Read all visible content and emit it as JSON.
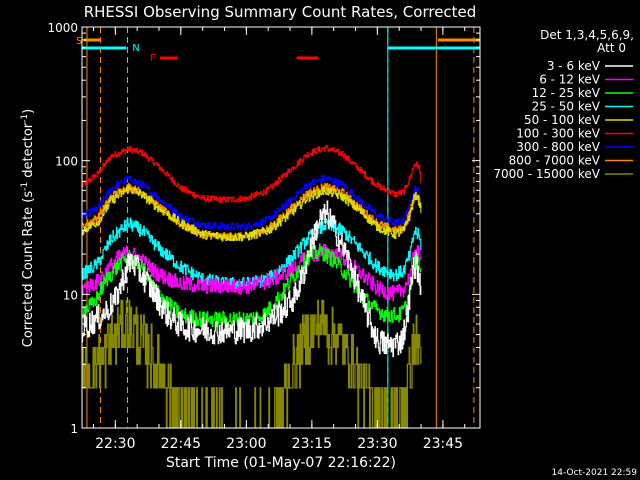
{
  "chart_data": {
    "type": "line",
    "title": "RHESSI Observing Summary Count Rates, Corrected",
    "xlabel": "Start Time (01-May-07 22:16:22)",
    "ylabel": "Corrected Count Rate (s⁻¹ detector⁻¹)",
    "ylabel_parts": {
      "main": "Corrected Count Rate (s",
      "exp1": "-1",
      "mid": " detector",
      "exp2": "-1",
      "end": ")"
    },
    "ylim": [
      1,
      1000
    ],
    "yscale": "log",
    "y_ticks": [
      "1",
      "10",
      "100",
      "1000"
    ],
    "x_range_minutes": [
      22.367,
      113.5
    ],
    "x_ticks": [
      {
        "label": "22:30",
        "min": 30
      },
      {
        "label": "22:45",
        "min": 45
      },
      {
        "label": "23:00",
        "min": 60
      },
      {
        "label": "23:15",
        "min": 75
      },
      {
        "label": "23:30",
        "min": 90
      },
      {
        "label": "23:45",
        "min": 105
      }
    ],
    "legend_header": [
      "Det 1,3,4,5,6,9,",
      "Att 0"
    ],
    "legend_position": "right",
    "series": [
      {
        "name": "3 - 6 keV",
        "color": "#ffffff",
        "noise": 0.1,
        "k": [
          [
            22.37,
            5.5
          ],
          [
            24,
            6
          ],
          [
            27,
            7
          ],
          [
            30,
            9
          ],
          [
            32,
            14
          ],
          [
            33.5,
            18
          ],
          [
            36,
            14
          ],
          [
            39,
            10
          ],
          [
            42,
            7
          ],
          [
            45,
            5.8
          ],
          [
            48,
            5.5
          ],
          [
            54,
            5.3
          ],
          [
            60,
            5.4
          ],
          [
            64,
            6
          ],
          [
            68,
            7.5
          ],
          [
            71,
            9.5
          ],
          [
            73,
            14
          ],
          [
            74.5,
            22
          ],
          [
            76.5,
            35
          ],
          [
            78.5,
            40
          ],
          [
            81,
            27
          ],
          [
            84,
            16
          ],
          [
            86,
            10
          ],
          [
            88,
            6.5
          ],
          [
            90,
            4.5
          ],
          [
            92,
            4.2
          ],
          [
            93.5,
            4.2
          ],
          [
            95.5,
            4.5
          ],
          [
            96.5,
            6
          ],
          [
            97.5,
            10
          ],
          [
            98.2,
            16
          ],
          [
            98.9,
            17
          ],
          [
            99.5,
            13
          ],
          [
            100,
            12
          ]
        ]
      },
      {
        "name": "6 - 12 keV",
        "color": "#ff00ff",
        "noise": 0.06,
        "k": [
          [
            22.37,
            11
          ],
          [
            26,
            12.5
          ],
          [
            30,
            18
          ],
          [
            33,
            21
          ],
          [
            36,
            18
          ],
          [
            40,
            14
          ],
          [
            45,
            12
          ],
          [
            50,
            11.5
          ],
          [
            55,
            11.5
          ],
          [
            60,
            11.5
          ],
          [
            65,
            12.5
          ],
          [
            70,
            15
          ],
          [
            74,
            19
          ],
          [
            78,
            21
          ],
          [
            82,
            19
          ],
          [
            86,
            14.5
          ],
          [
            90,
            11
          ],
          [
            94,
            10
          ],
          [
            96,
            11
          ],
          [
            97.5,
            14
          ],
          [
            98.5,
            22
          ],
          [
            99.5,
            20
          ],
          [
            100,
            17
          ]
        ]
      },
      {
        "name": "12 - 25 keV",
        "color": "#00ff00",
        "noise": 0.06,
        "k": [
          [
            22.37,
            7.5
          ],
          [
            25,
            8.5
          ],
          [
            28,
            13
          ],
          [
            31,
            17
          ],
          [
            33,
            19
          ],
          [
            36,
            16
          ],
          [
            39,
            11
          ],
          [
            42,
            8.5
          ],
          [
            45,
            7
          ],
          [
            50,
            6.5
          ],
          [
            55,
            6.5
          ],
          [
            60,
            6.5
          ],
          [
            64,
            7
          ],
          [
            68,
            10
          ],
          [
            71,
            14
          ],
          [
            74,
            19
          ],
          [
            77,
            21
          ],
          [
            80,
            18
          ],
          [
            83,
            14
          ],
          [
            86,
            10
          ],
          [
            89,
            8
          ],
          [
            92,
            7
          ],
          [
            95,
            7
          ],
          [
            96.5,
            8
          ],
          [
            97.5,
            11
          ],
          [
            98.5,
            18
          ],
          [
            99.5,
            17
          ],
          [
            100,
            14
          ]
        ]
      },
      {
        "name": "25 - 50 keV",
        "color": "#00ffff",
        "noise": 0.05,
        "k": [
          [
            22.37,
            14
          ],
          [
            26,
            17
          ],
          [
            29,
            26
          ],
          [
            33,
            34
          ],
          [
            36,
            30
          ],
          [
            40,
            22
          ],
          [
            45,
            16
          ],
          [
            50,
            13
          ],
          [
            55,
            12
          ],
          [
            60,
            12
          ],
          [
            65,
            13
          ],
          [
            70,
            18
          ],
          [
            74,
            26
          ],
          [
            78,
            33
          ],
          [
            82,
            30
          ],
          [
            86,
            22
          ],
          [
            90,
            16
          ],
          [
            94,
            14
          ],
          [
            96,
            15
          ],
          [
            97.5,
            20
          ],
          [
            98.5,
            30
          ],
          [
            99.5,
            27
          ],
          [
            100,
            23
          ]
        ]
      },
      {
        "name": "50 - 100 keV",
        "color": "#dddd00",
        "noise": 0.035,
        "k": [
          [
            22.37,
            30
          ],
          [
            26,
            35
          ],
          [
            29,
            50
          ],
          [
            33,
            62
          ],
          [
            36,
            56
          ],
          [
            40,
            44
          ],
          [
            45,
            34
          ],
          [
            50,
            28
          ],
          [
            55,
            27
          ],
          [
            60,
            27
          ],
          [
            65,
            30
          ],
          [
            70,
            40
          ],
          [
            74,
            53
          ],
          [
            78,
            60
          ],
          [
            82,
            54
          ],
          [
            86,
            42
          ],
          [
            90,
            32
          ],
          [
            94,
            28
          ],
          [
            96,
            30
          ],
          [
            97.5,
            40
          ],
          [
            98.5,
            55
          ],
          [
            99.5,
            50
          ],
          [
            100,
            43
          ]
        ]
      },
      {
        "name": "100 - 300 keV",
        "color": "#ff0000",
        "noise": 0.025,
        "k": [
          [
            22.37,
            65
          ],
          [
            26,
            80
          ],
          [
            29,
            108
          ],
          [
            33,
            122
          ],
          [
            36,
            115
          ],
          [
            40,
            90
          ],
          [
            45,
            62
          ],
          [
            50,
            52
          ],
          [
            55,
            51
          ],
          [
            60,
            52
          ],
          [
            65,
            60
          ],
          [
            70,
            85
          ],
          [
            74,
            112
          ],
          [
            78,
            125
          ],
          [
            82,
            112
          ],
          [
            86,
            85
          ],
          [
            90,
            65
          ],
          [
            94,
            56
          ],
          [
            96,
            58
          ],
          [
            97.5,
            75
          ],
          [
            98.5,
            95
          ],
          [
            99.5,
            90
          ],
          [
            100,
            70
          ]
        ]
      },
      {
        "name": "300 - 800 keV",
        "color": "#0000ff",
        "noise": 0.03,
        "k": [
          [
            22.37,
            38
          ],
          [
            26,
            44
          ],
          [
            29,
            62
          ],
          [
            33,
            73
          ],
          [
            36,
            66
          ],
          [
            40,
            52
          ],
          [
            45,
            38
          ],
          [
            50,
            33
          ],
          [
            55,
            32
          ],
          [
            60,
            32
          ],
          [
            65,
            36
          ],
          [
            70,
            50
          ],
          [
            74,
            66
          ],
          [
            78,
            74
          ],
          [
            82,
            66
          ],
          [
            86,
            50
          ],
          [
            90,
            39
          ],
          [
            94,
            34
          ],
          [
            96,
            36
          ],
          [
            97.5,
            48
          ],
          [
            98.5,
            63
          ],
          [
            99.5,
            58
          ],
          [
            100,
            48
          ]
        ]
      },
      {
        "name": "800 - 7000 keV",
        "color": "#ff8800",
        "noise": 0.03,
        "k": [
          [
            22.37,
            32
          ],
          [
            26,
            38
          ],
          [
            29,
            54
          ],
          [
            33,
            64
          ],
          [
            36,
            58
          ],
          [
            40,
            45
          ],
          [
            45,
            33
          ],
          [
            50,
            28
          ],
          [
            55,
            27
          ],
          [
            60,
            27
          ],
          [
            65,
            31
          ],
          [
            70,
            43
          ],
          [
            74,
            57
          ],
          [
            78,
            64
          ],
          [
            82,
            58
          ],
          [
            86,
            44
          ],
          [
            90,
            34
          ],
          [
            94,
            30
          ],
          [
            96,
            31
          ],
          [
            97.5,
            42
          ],
          [
            98.5,
            55
          ],
          [
            99.5,
            51
          ],
          [
            100,
            42
          ]
        ]
      },
      {
        "name": "7000 - 15000 keV",
        "color": "#888800",
        "noise": 0.22,
        "k": [
          [
            22.37,
            2.5
          ],
          [
            25,
            2.8
          ],
          [
            28,
            3.8
          ],
          [
            31,
            5.5
          ],
          [
            33,
            6
          ],
          [
            35,
            5
          ],
          [
            38,
            3.5
          ],
          [
            41,
            2.5
          ],
          [
            44,
            1.6
          ],
          [
            47,
            1.2
          ],
          [
            50,
            1
          ],
          [
            55,
            1
          ],
          [
            60,
            1
          ],
          [
            65,
            1.1
          ],
          [
            68,
            1.6
          ],
          [
            71,
            3
          ],
          [
            74,
            5
          ],
          [
            77,
            6
          ],
          [
            80,
            5
          ],
          [
            83,
            3.5
          ],
          [
            86,
            2.3
          ],
          [
            89,
            1.6
          ],
          [
            92,
            1.2
          ],
          [
            95,
            1.3
          ],
          [
            97,
            2.2
          ],
          [
            98.5,
            4.5
          ],
          [
            99.5,
            4
          ],
          [
            100,
            3
          ]
        ]
      }
    ],
    "annotations": {
      "S_label": "S",
      "N_label": "N",
      "F_label": "F",
      "saa_segments": [
        [
          22.8,
          26.5
        ],
        [
          103.9,
          113.5
        ]
      ],
      "night_segments": [
        [
          22.37,
          32.5
        ],
        [
          92.4,
          113.5
        ]
      ],
      "flare_segments": [
        [
          40.2,
          44.2
        ],
        [
          71.5,
          76.5
        ]
      ],
      "saa_lines_solid": [
        23.5,
        103.5
      ],
      "saa_lines_dashed": [
        26.6,
        112.1
      ],
      "night_lines_dashed": [
        32.8,
        92.4
      ]
    }
  },
  "footer": {
    "timestamp": "14-Oct-2021 22:59"
  }
}
